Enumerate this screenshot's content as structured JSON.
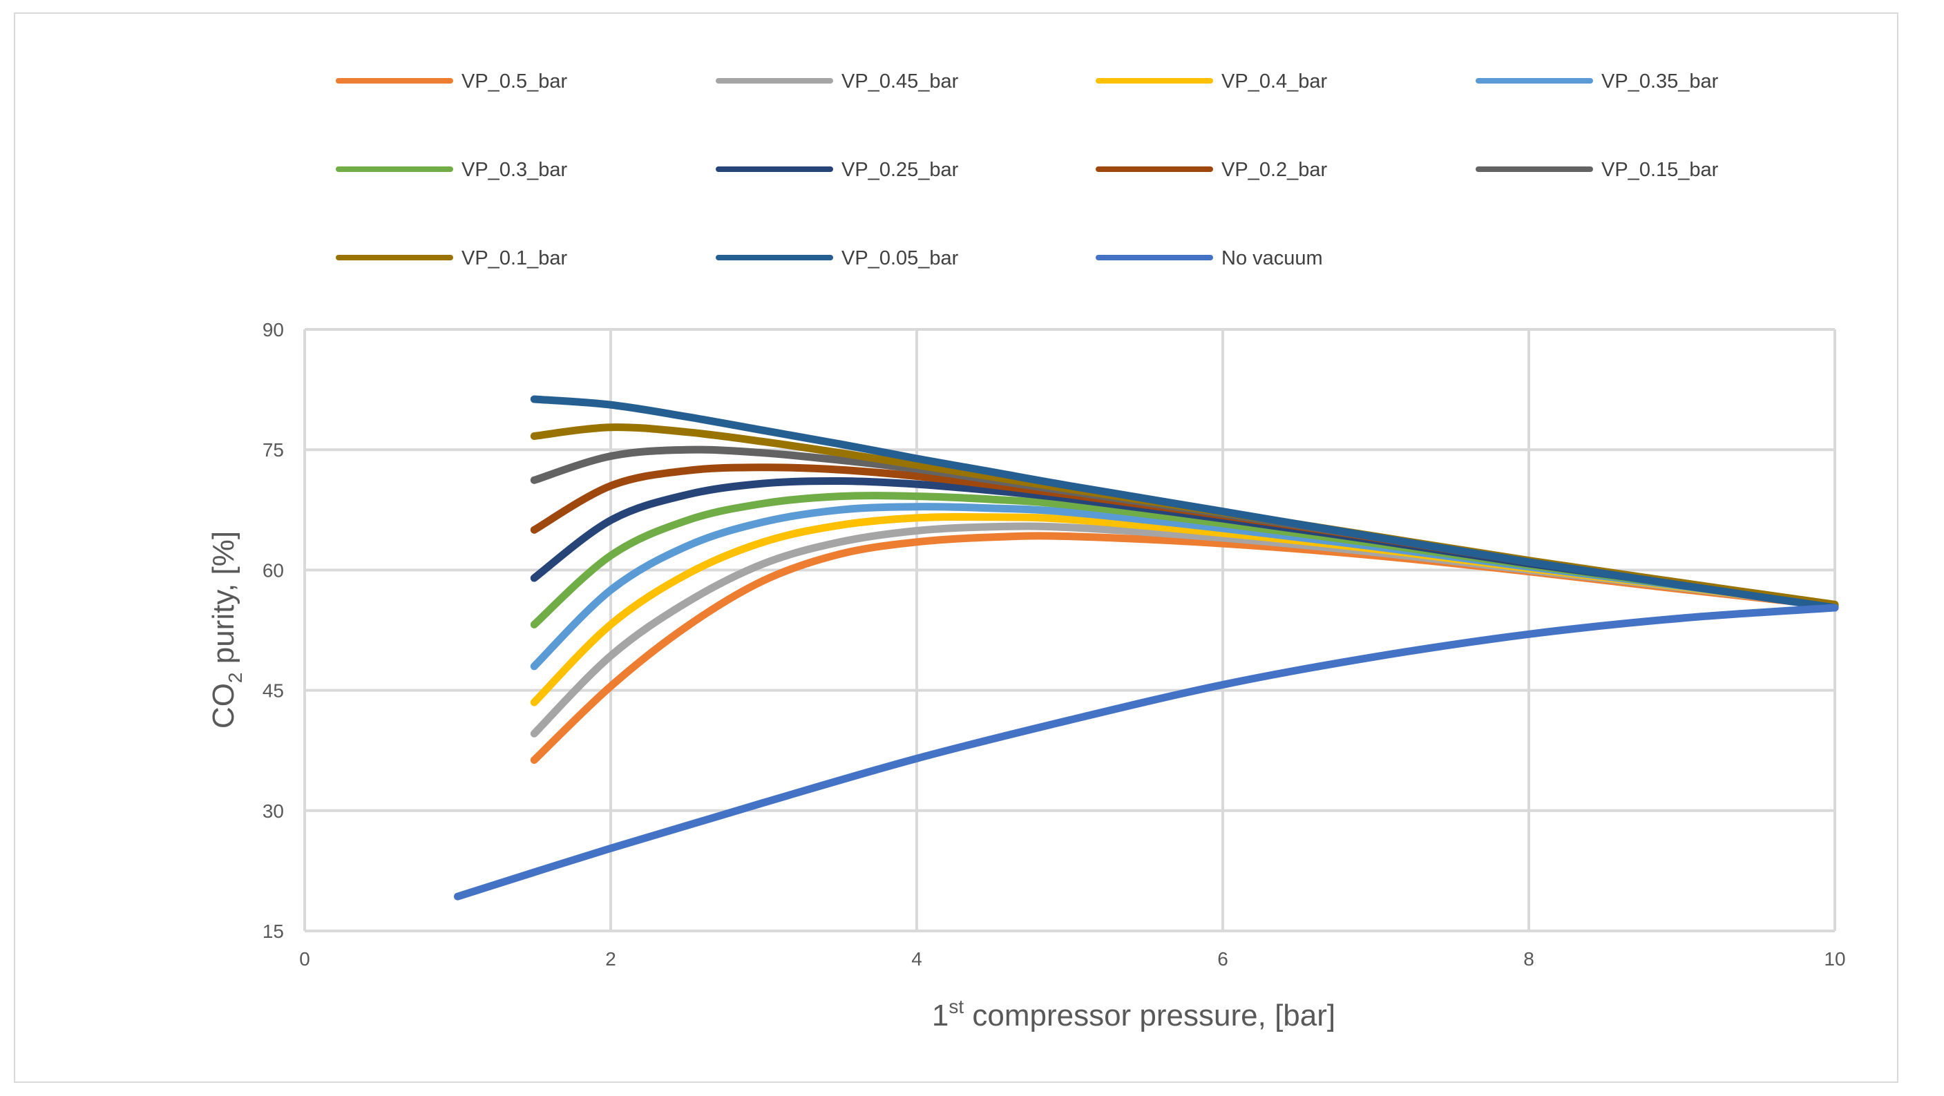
{
  "chart_data": {
    "type": "line",
    "title": "",
    "xlabel": {
      "main": "1",
      "sup": "st",
      "rest": " compressor pressure, [bar]"
    },
    "ylabel": {
      "pre": "CO",
      "sub": "2",
      "rest": " purity, [%]"
    },
    "xlim": [
      0,
      10
    ],
    "ylim": [
      15,
      90
    ],
    "xticks": [
      0,
      2,
      4,
      6,
      8,
      10
    ],
    "yticks": [
      15,
      30,
      45,
      60,
      75,
      90
    ],
    "grid": true,
    "legend_position": "top",
    "series": [
      {
        "name": "VP_0.5_bar",
        "color": "#ED7D31",
        "points": [
          [
            1.5,
            36.3
          ],
          [
            2,
            45.5
          ],
          [
            2.5,
            53
          ],
          [
            3,
            58.7
          ],
          [
            3.5,
            62
          ],
          [
            4,
            63.5
          ],
          [
            4.5,
            64.1
          ],
          [
            5,
            64.2
          ],
          [
            6,
            63.3
          ],
          [
            7,
            61.8
          ],
          [
            8,
            59.8
          ],
          [
            9,
            57.6
          ],
          [
            10,
            55.5
          ]
        ]
      },
      {
        "name": "VP_0.45_bar",
        "color": "#A5A5A5",
        "points": [
          [
            1.5,
            39.6
          ],
          [
            2,
            49.3
          ],
          [
            2.5,
            56
          ],
          [
            3,
            60.8
          ],
          [
            3.5,
            63.5
          ],
          [
            4,
            64.9
          ],
          [
            4.5,
            65.4
          ],
          [
            5,
            65.3
          ],
          [
            6,
            64
          ],
          [
            7,
            62.2
          ],
          [
            8,
            60
          ],
          [
            9,
            57.8
          ],
          [
            10,
            55.5
          ]
        ]
      },
      {
        "name": "VP_0.4_bar",
        "color": "#FFC000",
        "points": [
          [
            1.5,
            43.5
          ],
          [
            2,
            53.2
          ],
          [
            2.5,
            59.5
          ],
          [
            3,
            63.5
          ],
          [
            3.5,
            65.6
          ],
          [
            4,
            66.5
          ],
          [
            4.5,
            66.6
          ],
          [
            5,
            66.3
          ],
          [
            6,
            64.6
          ],
          [
            7,
            62.6
          ],
          [
            8,
            60.2
          ],
          [
            9,
            57.9
          ],
          [
            10,
            55.5
          ]
        ]
      },
      {
        "name": "VP_0.35_bar",
        "color": "#5B9BD5",
        "points": [
          [
            1.5,
            48
          ],
          [
            2,
            57.5
          ],
          [
            2.5,
            63
          ],
          [
            3,
            66
          ],
          [
            3.5,
            67.5
          ],
          [
            4,
            67.9
          ],
          [
            4.5,
            67.7
          ],
          [
            5,
            67.2
          ],
          [
            6,
            65.2
          ],
          [
            7,
            62.9
          ],
          [
            8,
            60.4
          ],
          [
            9,
            58
          ],
          [
            10,
            55.5
          ]
        ]
      },
      {
        "name": "VP_0.3_bar",
        "color": "#70AD47",
        "points": [
          [
            1.5,
            53.2
          ],
          [
            2,
            61.8
          ],
          [
            2.5,
            66.2
          ],
          [
            3,
            68.3
          ],
          [
            3.5,
            69.2
          ],
          [
            4,
            69.2
          ],
          [
            4.5,
            68.8
          ],
          [
            5,
            68.1
          ],
          [
            6,
            65.8
          ],
          [
            7,
            63.3
          ],
          [
            8,
            60.6
          ],
          [
            9,
            58.1
          ],
          [
            10,
            55.5
          ]
        ]
      },
      {
        "name": "VP_0.25_bar",
        "color": "#264478",
        "points": [
          [
            1.5,
            59
          ],
          [
            2,
            66.2
          ],
          [
            2.5,
            69.4
          ],
          [
            3,
            70.8
          ],
          [
            3.5,
            71.1
          ],
          [
            4,
            70.7
          ],
          [
            4.5,
            69.9
          ],
          [
            5,
            68.9
          ],
          [
            6,
            66.4
          ],
          [
            7,
            63.7
          ],
          [
            8,
            60.8
          ],
          [
            9,
            58.2
          ],
          [
            10,
            55.5
          ]
        ]
      },
      {
        "name": "VP_0.2_bar",
        "color": "#9E480E",
        "points": [
          [
            1.5,
            65
          ],
          [
            2,
            70.5
          ],
          [
            2.5,
            72.4
          ],
          [
            3,
            72.8
          ],
          [
            3.5,
            72.5
          ],
          [
            4,
            71.7
          ],
          [
            4.5,
            70.6
          ],
          [
            5,
            69.4
          ],
          [
            6,
            66.8
          ],
          [
            7,
            64
          ],
          [
            8,
            61
          ],
          [
            9,
            58.3
          ],
          [
            10,
            55.6
          ]
        ]
      },
      {
        "name": "VP_0.15_bar",
        "color": "#636363",
        "points": [
          [
            1.5,
            71.2
          ],
          [
            2,
            74.2
          ],
          [
            2.5,
            75
          ],
          [
            3,
            74.6
          ],
          [
            3.5,
            73.7
          ],
          [
            4,
            72.6
          ],
          [
            4.5,
            71.2
          ],
          [
            5,
            69.8
          ],
          [
            6,
            67
          ],
          [
            7,
            64.1
          ],
          [
            8,
            61.1
          ],
          [
            9,
            58.4
          ],
          [
            10,
            55.6
          ]
        ]
      },
      {
        "name": "VP_0.1_bar",
        "color": "#997300",
        "points": [
          [
            1.5,
            76.7
          ],
          [
            2,
            77.8
          ],
          [
            2.5,
            77.2
          ],
          [
            3,
            76
          ],
          [
            3.5,
            74.6
          ],
          [
            4,
            73.1
          ],
          [
            4.5,
            71.6
          ],
          [
            5,
            70.1
          ],
          [
            6,
            67.2
          ],
          [
            7,
            64.2
          ],
          [
            8,
            61.2
          ],
          [
            9,
            58.4
          ],
          [
            10,
            55.7
          ]
        ]
      },
      {
        "name": "VP_0.05_bar",
        "color": "#255E91",
        "points": [
          [
            1.5,
            81.3
          ],
          [
            2,
            80.6
          ],
          [
            2.5,
            79.1
          ],
          [
            3,
            77.4
          ],
          [
            3.5,
            75.7
          ],
          [
            4,
            73.9
          ],
          [
            4.5,
            72.2
          ],
          [
            5,
            70.5
          ],
          [
            6,
            67.3
          ],
          [
            7,
            64.1
          ],
          [
            8,
            61
          ],
          [
            9,
            58.1
          ],
          [
            10,
            55.3
          ]
        ]
      },
      {
        "name": "No vacuum",
        "color": "#4472C4",
        "points": [
          [
            1,
            19.3
          ],
          [
            2,
            25.3
          ],
          [
            3,
            31
          ],
          [
            4,
            36.5
          ],
          [
            5,
            41.3
          ],
          [
            6,
            45.7
          ],
          [
            7,
            49.2
          ],
          [
            8,
            52
          ],
          [
            9,
            54
          ],
          [
            10,
            55.3
          ]
        ]
      }
    ]
  }
}
